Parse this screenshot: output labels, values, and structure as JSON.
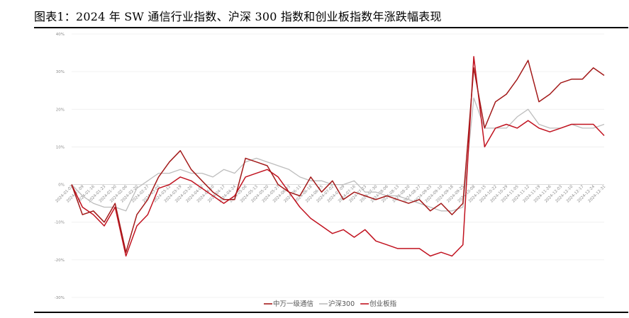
{
  "title": "图表1：2024 年 SW 通信行业指数、沪深 300 指数和创业板指数年涨跌幅表现",
  "chart_data": {
    "type": "line",
    "title": "图表1：2024 年 SW 通信行业指数、沪深 300 指数和创业板指数年涨跌幅表现",
    "ylim": [
      -30,
      40
    ],
    "yticks": [
      "-30%",
      "-20%",
      "-10%",
      "0%",
      "10%",
      "20%",
      "30%",
      "40%"
    ],
    "xticks": [
      "2024-01-02",
      "2024-01-09",
      "2024-01-16",
      "2024-01-23",
      "2024-01-30",
      "2024-02-06",
      "2024-02-20",
      "2024-02-27",
      "2024-03-05",
      "2024-03-12",
      "2024-03-19",
      "2024-03-26",
      "2024-04-02",
      "2024-04-10",
      "2024-04-17",
      "2024-04-24",
      "2024-05-06",
      "2024-05-13",
      "2024-05-20",
      "2024-05-27",
      "2024-06-03",
      "2024-06-11",
      "2024-06-18",
      "2024-06-25",
      "2024-07-02",
      "2024-07-09",
      "2024-07-16",
      "2024-07-23",
      "2024-07-30",
      "2024-08-06",
      "2024-08-13",
      "2024-08-20",
      "2024-08-27",
      "2024-09-03",
      "2024-09-10",
      "2024-09-18",
      "2024-09-25",
      "2024-10-08",
      "2024-10-15",
      "2024-10-22",
      "2024-10-29",
      "2024-11-05",
      "2024-11-12",
      "2024-11-19",
      "2024-11-26",
      "2024-12-03",
      "2024-12-10",
      "2024-12-17",
      "2024-12-24",
      "2024-12-31"
    ],
    "legend_position": "bottom",
    "grid": true,
    "series": [
      {
        "name": "中万一级通信",
        "color": "#a31a1a",
        "x": [
          "2024-01-02",
          "2024-01-09",
          "2024-01-16",
          "2024-01-23",
          "2024-01-30",
          "2024-02-06",
          "2024-02-20",
          "2024-02-27",
          "2024-03-05",
          "2024-03-12",
          "2024-03-19",
          "2024-03-26",
          "2024-04-02",
          "2024-04-10",
          "2024-04-17",
          "2024-04-24",
          "2024-05-06",
          "2024-05-13",
          "2024-05-20",
          "2024-05-27",
          "2024-06-03",
          "2024-06-11",
          "2024-06-18",
          "2024-06-25",
          "2024-07-02",
          "2024-07-09",
          "2024-07-16",
          "2024-07-23",
          "2024-07-30",
          "2024-08-06",
          "2024-08-13",
          "2024-08-20",
          "2024-08-27",
          "2024-09-03",
          "2024-09-10",
          "2024-09-18",
          "2024-09-25",
          "2024-10-08",
          "2024-10-15",
          "2024-10-22",
          "2024-10-29",
          "2024-11-05",
          "2024-11-12",
          "2024-11-19",
          "2024-11-26",
          "2024-12-03",
          "2024-12-10",
          "2024-12-17",
          "2024-12-24",
          "2024-12-31"
        ],
        "y": [
          0,
          -8,
          -7,
          -10,
          -5,
          -18,
          -8,
          -4,
          2,
          6,
          9,
          4,
          1,
          -2,
          -4,
          -4,
          7,
          6,
          5,
          0,
          -2,
          -3,
          2,
          -2,
          1,
          -4,
          -2,
          -3,
          -4,
          -3,
          -4,
          -5,
          -4,
          -7,
          -5,
          -8,
          -5,
          31,
          15,
          22,
          24,
          28,
          33,
          22,
          24,
          27,
          28,
          28,
          31,
          29
        ]
      },
      {
        "name": "沪深300",
        "color": "#bdbdbd",
        "x": [
          "2024-01-02",
          "2024-01-09",
          "2024-01-16",
          "2024-01-23",
          "2024-01-30",
          "2024-02-06",
          "2024-02-20",
          "2024-02-27",
          "2024-03-05",
          "2024-03-12",
          "2024-03-19",
          "2024-03-26",
          "2024-04-02",
          "2024-04-10",
          "2024-04-17",
          "2024-04-24",
          "2024-05-06",
          "2024-05-13",
          "2024-05-20",
          "2024-05-27",
          "2024-06-03",
          "2024-06-11",
          "2024-06-18",
          "2024-06-25",
          "2024-07-02",
          "2024-07-09",
          "2024-07-16",
          "2024-07-23",
          "2024-07-30",
          "2024-08-06",
          "2024-08-13",
          "2024-08-20",
          "2024-08-27",
          "2024-09-03",
          "2024-09-10",
          "2024-09-18",
          "2024-09-25",
          "2024-10-08",
          "2024-10-15",
          "2024-10-22",
          "2024-10-29",
          "2024-11-05",
          "2024-11-12",
          "2024-11-19",
          "2024-11-26",
          "2024-12-03",
          "2024-12-10",
          "2024-12-17",
          "2024-12-24",
          "2024-12-31"
        ],
        "y": [
          0,
          -3,
          -5,
          -6,
          -6,
          -7,
          -1,
          1,
          3,
          3,
          4,
          3,
          3,
          2,
          4,
          3,
          6,
          7,
          6,
          5,
          4,
          2,
          1,
          1,
          0,
          0,
          1,
          -2,
          -2,
          -3,
          -3,
          -4,
          -5,
          -6,
          -7,
          -7,
          -6,
          23,
          15,
          15,
          15,
          18,
          20,
          16,
          15,
          15,
          16,
          15,
          15,
          16
        ]
      },
      {
        "name": "创业板指",
        "color": "#c1121f",
        "x": [
          "2024-01-02",
          "2024-01-09",
          "2024-01-16",
          "2024-01-23",
          "2024-01-30",
          "2024-02-06",
          "2024-02-20",
          "2024-02-27",
          "2024-03-05",
          "2024-03-12",
          "2024-03-19",
          "2024-03-26",
          "2024-04-02",
          "2024-04-10",
          "2024-04-17",
          "2024-04-24",
          "2024-05-06",
          "2024-05-13",
          "2024-05-20",
          "2024-05-27",
          "2024-06-03",
          "2024-06-11",
          "2024-06-18",
          "2024-06-25",
          "2024-07-02",
          "2024-07-09",
          "2024-07-16",
          "2024-07-23",
          "2024-07-30",
          "2024-08-06",
          "2024-08-13",
          "2024-08-20",
          "2024-08-27",
          "2024-09-03",
          "2024-09-10",
          "2024-09-18",
          "2024-09-25",
          "2024-10-08",
          "2024-10-15",
          "2024-10-22",
          "2024-10-29",
          "2024-11-05",
          "2024-11-12",
          "2024-11-19",
          "2024-11-26",
          "2024-12-03",
          "2024-12-10",
          "2024-12-17",
          "2024-12-24",
          "2024-12-31"
        ],
        "y": [
          0,
          -6,
          -8,
          -11,
          -6,
          -19,
          -11,
          -8,
          -1,
          0,
          2,
          1,
          -1,
          -3,
          -5,
          -3,
          2,
          3,
          4,
          2,
          -2,
          -6,
          -9,
          -11,
          -13,
          -12,
          -14,
          -12,
          -15,
          -16,
          -17,
          -17,
          -17,
          -19,
          -18,
          -19,
          -16,
          34,
          10,
          15,
          16,
          15,
          17,
          15,
          14,
          15,
          16,
          16,
          16,
          13
        ]
      }
    ]
  }
}
